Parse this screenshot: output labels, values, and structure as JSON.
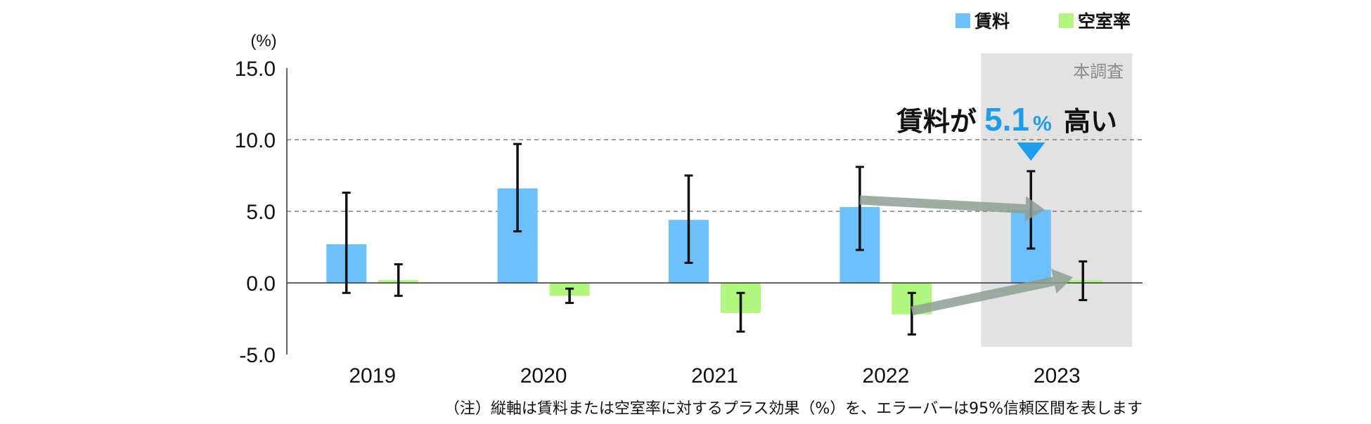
{
  "chart_data": {
    "type": "bar",
    "categories": [
      "2019",
      "2020",
      "2021",
      "2022",
      "2023"
    ],
    "series": [
      {
        "name": "賃料",
        "color": "#6cc0fb",
        "values": [
          2.7,
          6.6,
          4.4,
          5.3,
          5.1
        ],
        "error_low": [
          -0.7,
          3.6,
          1.4,
          2.3,
          2.4
        ],
        "error_high": [
          6.3,
          9.7,
          7.5,
          8.1,
          7.8
        ]
      },
      {
        "name": "空室率",
        "color": "#b1f77f",
        "values": [
          0.2,
          -0.9,
          -2.1,
          -2.2,
          0.2
        ],
        "error_low": [
          -0.9,
          -1.4,
          -3.4,
          -3.6,
          -1.2
        ],
        "error_high": [
          1.3,
          -0.4,
          -0.7,
          -0.7,
          1.5
        ]
      }
    ],
    "ylim": [
      -5,
      15
    ],
    "yticks": [
      "15.0",
      "10.0",
      "5.0",
      "0.0",
      "-5.0"
    ],
    "ytick_values": [
      15,
      10,
      5,
      0,
      -5
    ],
    "y_unit": "(%)",
    "dashed_gridlines_at": [
      10,
      5
    ],
    "legend_position": "top-right",
    "highlight": {
      "category": "2023",
      "label": "本調査"
    },
    "annotation": {
      "prefix": "賃料が",
      "value": "5.1",
      "unit": "%",
      "suffix": "高い"
    },
    "note": "（注）縦軸は賃料または空室率に対するプラス効果（%）を、エラーバーは95%信頼区間を表します"
  },
  "colors": {
    "arrow": "#8fa194",
    "pointer": "#1e9cf0",
    "highlight_bg": "#e2e2e2"
  }
}
